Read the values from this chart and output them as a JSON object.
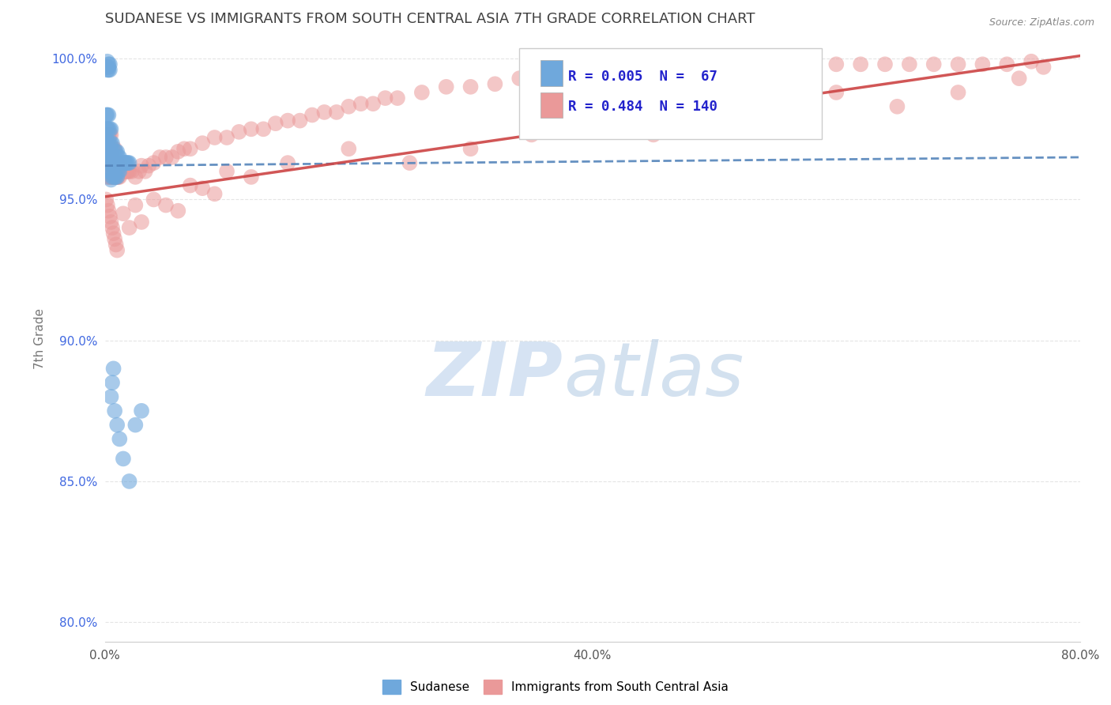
{
  "title": "SUDANESE VS IMMIGRANTS FROM SOUTH CENTRAL ASIA 7TH GRADE CORRELATION CHART",
  "source": "Source: ZipAtlas.com",
  "ylabel": "7th Grade",
  "xlim": [
    0.0,
    0.8
  ],
  "ylim": [
    0.793,
    1.008
  ],
  "yticks": [
    0.8,
    0.85,
    0.9,
    0.95,
    1.0
  ],
  "xticks": [
    0.0,
    0.4,
    0.8
  ],
  "xtick_labels": [
    "0.0%",
    "40.0%",
    "80.0%"
  ],
  "ytick_labels": [
    "80.0%",
    "85.0%",
    "90.0%",
    "95.0%",
    "100.0%"
  ],
  "blue_color": "#6fa8dc",
  "pink_color": "#ea9999",
  "blue_line_color": "#5585bb",
  "pink_line_color": "#cc4444",
  "blue_label": "Sudanese",
  "pink_label": "Immigrants from South Central Asia",
  "R_blue": 0.005,
  "N_blue": 67,
  "R_pink": 0.484,
  "N_pink": 140,
  "legend_color": "#2222cc",
  "title_color": "#404040",
  "axis_tick_color": "#4169e1",
  "background_color": "#ffffff",
  "blue_x": [
    0.001,
    0.001,
    0.001,
    0.002,
    0.002,
    0.002,
    0.002,
    0.003,
    0.003,
    0.003,
    0.003,
    0.003,
    0.004,
    0.004,
    0.004,
    0.004,
    0.005,
    0.005,
    0.005,
    0.005,
    0.005,
    0.006,
    0.006,
    0.006,
    0.006,
    0.007,
    0.007,
    0.007,
    0.008,
    0.008,
    0.008,
    0.009,
    0.009,
    0.009,
    0.01,
    0.01,
    0.01,
    0.011,
    0.011,
    0.012,
    0.012,
    0.013,
    0.014,
    0.015,
    0.016,
    0.017,
    0.018,
    0.019,
    0.02,
    0.005,
    0.006,
    0.007,
    0.008,
    0.01,
    0.012,
    0.015,
    0.02,
    0.025,
    0.03,
    0.002,
    0.003,
    0.004,
    0.003,
    0.002,
    0.003,
    0.004,
    0.002
  ],
  "blue_y": [
    0.97,
    0.975,
    0.98,
    0.965,
    0.97,
    0.975,
    0.98,
    0.96,
    0.965,
    0.97,
    0.975,
    0.98,
    0.96,
    0.965,
    0.97,
    0.975,
    0.957,
    0.96,
    0.965,
    0.97,
    0.975,
    0.958,
    0.962,
    0.965,
    0.97,
    0.958,
    0.962,
    0.966,
    0.958,
    0.963,
    0.967,
    0.958,
    0.963,
    0.967,
    0.958,
    0.963,
    0.967,
    0.96,
    0.965,
    0.96,
    0.965,
    0.962,
    0.963,
    0.963,
    0.963,
    0.963,
    0.963,
    0.963,
    0.963,
    0.88,
    0.885,
    0.89,
    0.875,
    0.87,
    0.865,
    0.858,
    0.85,
    0.87,
    0.875,
    0.996,
    0.996,
    0.996,
    0.997,
    0.997,
    0.998,
    0.998,
    0.999
  ],
  "pink_x": [
    0.001,
    0.001,
    0.001,
    0.002,
    0.002,
    0.002,
    0.002,
    0.003,
    0.003,
    0.003,
    0.003,
    0.004,
    0.004,
    0.004,
    0.004,
    0.005,
    0.005,
    0.005,
    0.005,
    0.006,
    0.006,
    0.006,
    0.007,
    0.007,
    0.007,
    0.008,
    0.008,
    0.008,
    0.009,
    0.009,
    0.01,
    0.01,
    0.011,
    0.011,
    0.012,
    0.012,
    0.013,
    0.014,
    0.015,
    0.016,
    0.017,
    0.018,
    0.019,
    0.02,
    0.022,
    0.025,
    0.028,
    0.03,
    0.033,
    0.036,
    0.04,
    0.045,
    0.05,
    0.055,
    0.06,
    0.065,
    0.07,
    0.08,
    0.09,
    0.1,
    0.11,
    0.12,
    0.13,
    0.14,
    0.15,
    0.16,
    0.17,
    0.18,
    0.19,
    0.2,
    0.21,
    0.22,
    0.23,
    0.24,
    0.26,
    0.28,
    0.3,
    0.32,
    0.34,
    0.36,
    0.38,
    0.4,
    0.42,
    0.44,
    0.46,
    0.48,
    0.5,
    0.52,
    0.54,
    0.56,
    0.58,
    0.6,
    0.62,
    0.64,
    0.66,
    0.68,
    0.7,
    0.72,
    0.74,
    0.76,
    0.001,
    0.002,
    0.003,
    0.004,
    0.005,
    0.006,
    0.007,
    0.008,
    0.009,
    0.01,
    0.015,
    0.02,
    0.025,
    0.03,
    0.04,
    0.05,
    0.06,
    0.07,
    0.08,
    0.09,
    0.1,
    0.12,
    0.15,
    0.2,
    0.25,
    0.3,
    0.35,
    0.4,
    0.45,
    0.5,
    0.55,
    0.6,
    0.65,
    0.7,
    0.75,
    0.77,
    0.002,
    0.003,
    0.004,
    0.005
  ],
  "pink_y": [
    0.96,
    0.965,
    0.97,
    0.958,
    0.963,
    0.968,
    0.973,
    0.958,
    0.963,
    0.968,
    0.973,
    0.958,
    0.963,
    0.968,
    0.973,
    0.958,
    0.963,
    0.968,
    0.973,
    0.958,
    0.963,
    0.968,
    0.958,
    0.963,
    0.968,
    0.958,
    0.963,
    0.968,
    0.958,
    0.963,
    0.958,
    0.963,
    0.958,
    0.963,
    0.958,
    0.963,
    0.96,
    0.96,
    0.96,
    0.96,
    0.96,
    0.96,
    0.96,
    0.96,
    0.96,
    0.958,
    0.96,
    0.962,
    0.96,
    0.962,
    0.963,
    0.965,
    0.965,
    0.965,
    0.967,
    0.968,
    0.968,
    0.97,
    0.972,
    0.972,
    0.974,
    0.975,
    0.975,
    0.977,
    0.978,
    0.978,
    0.98,
    0.981,
    0.981,
    0.983,
    0.984,
    0.984,
    0.986,
    0.986,
    0.988,
    0.99,
    0.99,
    0.991,
    0.993,
    0.993,
    0.995,
    0.995,
    0.996,
    0.997,
    0.997,
    0.998,
    0.998,
    0.998,
    0.998,
    0.998,
    0.998,
    0.998,
    0.998,
    0.998,
    0.998,
    0.998,
    0.998,
    0.998,
    0.998,
    0.999,
    0.95,
    0.948,
    0.946,
    0.944,
    0.942,
    0.94,
    0.938,
    0.936,
    0.934,
    0.932,
    0.945,
    0.94,
    0.948,
    0.942,
    0.95,
    0.948,
    0.946,
    0.955,
    0.954,
    0.952,
    0.96,
    0.958,
    0.963,
    0.968,
    0.963,
    0.968,
    0.973,
    0.978,
    0.973,
    0.978,
    0.983,
    0.988,
    0.983,
    0.988,
    0.993,
    0.997,
    0.975,
    0.972,
    0.969,
    0.966
  ]
}
